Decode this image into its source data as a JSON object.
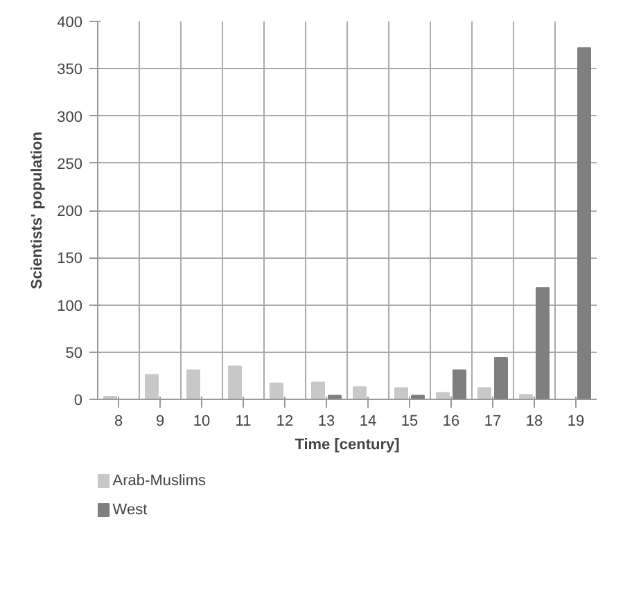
{
  "chart_data": {
    "type": "bar",
    "xlabel": "Time [century]",
    "ylabel": "Scientists' population",
    "categories": [
      "8",
      "9",
      "10",
      "11",
      "12",
      "13",
      "14",
      "15",
      "16",
      "17",
      "18",
      "19"
    ],
    "series": [
      {
        "name": "Arab-Muslims",
        "color": "#c8c8c8",
        "values": [
          3,
          26,
          31,
          35,
          17,
          18,
          13,
          12,
          7,
          12,
          5,
          0
        ]
      },
      {
        "name": "West",
        "color": "#7f7f7f",
        "values": [
          0,
          0,
          0,
          null,
          null,
          4,
          0,
          4,
          31,
          44,
          118,
          372
        ]
      }
    ],
    "ylim": [
      0,
      400
    ],
    "yticks": [
      0,
      50,
      100,
      150,
      200,
      250,
      300,
      350,
      400
    ],
    "grid": true,
    "legend": "bottom left"
  }
}
